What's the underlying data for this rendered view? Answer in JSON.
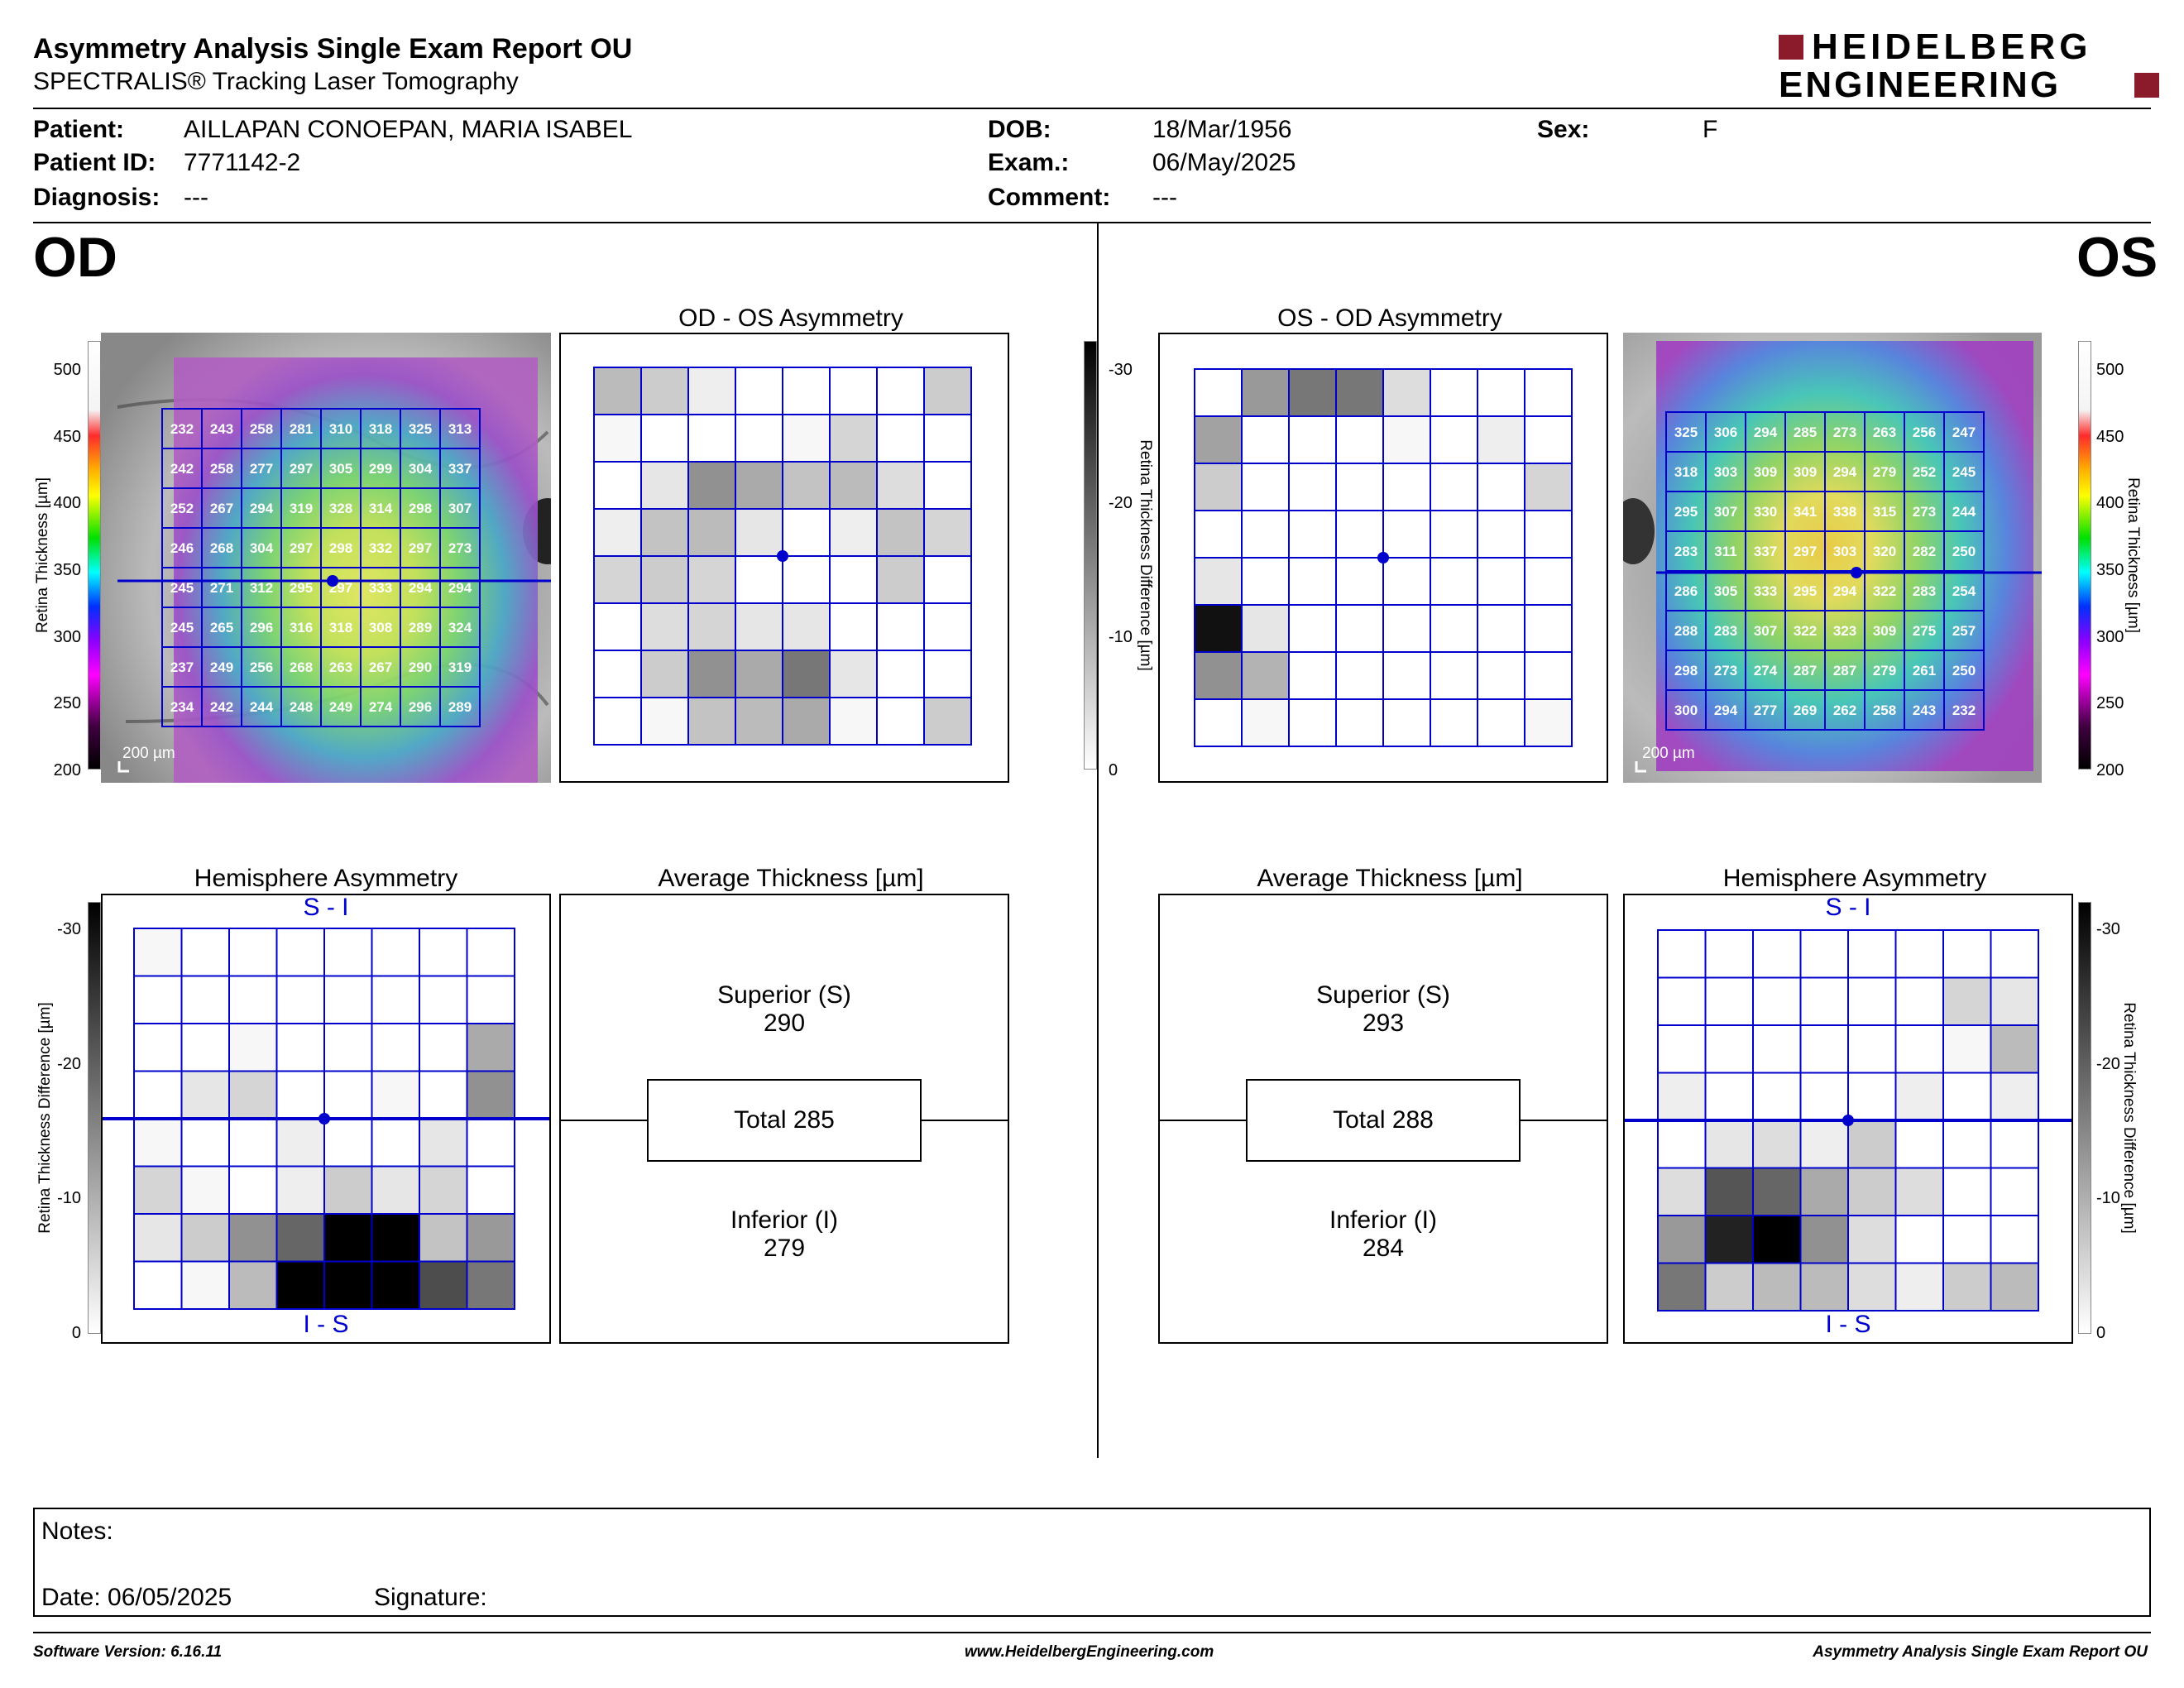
{
  "header": {
    "title": "Asymmetry Analysis Single Exam Report OU",
    "subtitle": "SPECTRALIS® Tracking Laser Tomography",
    "logo_line1": "HEIDELBERG",
    "logo_line2": "ENGINEERING",
    "brand_color": "#8b1a2b"
  },
  "patient": {
    "patient_label": "Patient:",
    "patient_value": "AILLAPAN CONOEPAN, MARIA ISABEL",
    "id_label": "Patient ID:",
    "id_value": "7771142-2",
    "diagnosis_label": "Diagnosis:",
    "diagnosis_value": "---",
    "dob_label": "DOB:",
    "dob_value": "18/Mar/1956",
    "exam_label": "Exam.:",
    "exam_value": "06/May/2025",
    "comment_label": "Comment:",
    "comment_value": "---",
    "sex_label": "Sex:",
    "sex_value": "F"
  },
  "od": {
    "eye_label": "OD",
    "asym_title": "OD - OS Asymmetry",
    "hemi_title": "Hemisphere Asymmetry",
    "avg_title": "Average Thickness [µm]",
    "superior_label": "Superior (S)",
    "superior_value": "290",
    "total_label": "Total 285",
    "inferior_label": "Inferior (I)",
    "inferior_value": "279",
    "scale_label": "200 µm",
    "hemi_top": "S - I",
    "hemi_bottom": "I - S",
    "thickness_grid": [
      [
        "232",
        "243",
        "258",
        "281",
        "310",
        "318",
        "325",
        "313"
      ],
      [
        "242",
        "258",
        "277",
        "297",
        "305",
        "299",
        "304",
        "337"
      ],
      [
        "252",
        "267",
        "294",
        "319",
        "328",
        "314",
        "298",
        "307"
      ],
      [
        "246",
        "268",
        "304",
        "297",
        "298",
        "332",
        "297",
        "273"
      ],
      [
        "245",
        "271",
        "312",
        "295",
        "297",
        "333",
        "294",
        "294"
      ],
      [
        "245",
        "265",
        "296",
        "316",
        "318",
        "308",
        "289",
        "324"
      ],
      [
        "237",
        "249",
        "256",
        "268",
        "263",
        "267",
        "290",
        "319"
      ],
      [
        "234",
        "242",
        "244",
        "248",
        "249",
        "274",
        "296",
        "289"
      ]
    ],
    "asym_gray": [
      [
        8,
        6,
        2,
        0,
        0,
        0,
        0,
        6
      ],
      [
        1,
        0,
        0,
        0,
        1,
        5,
        0,
        0
      ],
      [
        0,
        3,
        13,
        10,
        7,
        8,
        4,
        0
      ],
      [
        2,
        7,
        8,
        3,
        0,
        2,
        7,
        5
      ],
      [
        5,
        6,
        5,
        0,
        0,
        0,
        6,
        0
      ],
      [
        0,
        4,
        5,
        3,
        3,
        0,
        0,
        0
      ],
      [
        0,
        6,
        13,
        10,
        16,
        3,
        0,
        0
      ],
      [
        0,
        1,
        7,
        8,
        10,
        1,
        0,
        6
      ]
    ],
    "hemi_gray": [
      [
        1,
        0,
        0,
        0,
        0,
        0,
        0,
        0
      ],
      [
        0,
        0,
        0,
        0,
        0,
        0,
        0,
        0
      ],
      [
        0,
        0,
        1,
        0,
        0,
        0,
        0,
        10
      ],
      [
        0,
        3,
        5,
        0,
        0,
        1,
        0,
        13
      ],
      [
        1,
        0,
        0,
        2,
        0,
        0,
        3,
        0
      ],
      [
        5,
        1,
        0,
        2,
        6,
        3,
        5,
        0
      ],
      [
        3,
        6,
        13,
        18,
        30,
        30,
        7,
        12
      ],
      [
        0,
        1,
        8,
        30,
        30,
        30,
        21,
        16
      ]
    ]
  },
  "os": {
    "eye_label": "OS",
    "asym_title": "OS - OD Asymmetry",
    "hemi_title": "Hemisphere Asymmetry",
    "avg_title": "Average Thickness [µm]",
    "superior_label": "Superior (S)",
    "superior_value": "293",
    "total_label": "Total 288",
    "inferior_label": "Inferior (I)",
    "inferior_value": "284",
    "scale_label": "200 µm",
    "hemi_top": "S - I",
    "hemi_bottom": "I - S",
    "thickness_grid": [
      [
        "325",
        "306",
        "294",
        "285",
        "273",
        "263",
        "256",
        "247"
      ],
      [
        "318",
        "303",
        "309",
        "309",
        "294",
        "279",
        "252",
        "245"
      ],
      [
        "295",
        "307",
        "330",
        "341",
        "338",
        "315",
        "273",
        "244"
      ],
      [
        "283",
        "311",
        "337",
        "297",
        "303",
        "320",
        "282",
        "250"
      ],
      [
        "286",
        "305",
        "333",
        "295",
        "294",
        "322",
        "283",
        "254"
      ],
      [
        "288",
        "283",
        "307",
        "322",
        "323",
        "309",
        "275",
        "257"
      ],
      [
        "298",
        "273",
        "274",
        "287",
        "287",
        "279",
        "261",
        "250"
      ],
      [
        "300",
        "294",
        "277",
        "269",
        "262",
        "258",
        "243",
        "232"
      ]
    ],
    "asym_gray": [
      [
        0,
        12,
        16,
        16,
        4,
        0,
        0,
        0
      ],
      [
        11,
        0,
        0,
        0,
        1,
        0,
        2,
        0
      ],
      [
        6,
        0,
        0,
        0,
        0,
        0,
        0,
        5
      ],
      [
        0,
        0,
        0,
        0,
        0,
        0,
        0,
        0
      ],
      [
        3,
        0,
        0,
        0,
        0,
        0,
        0,
        0
      ],
      [
        28,
        3,
        0,
        0,
        0,
        0,
        0,
        0
      ],
      [
        13,
        9,
        0,
        0,
        0,
        0,
        0,
        0
      ],
      [
        0,
        1,
        0,
        0,
        0,
        0,
        0,
        1
      ]
    ],
    "hemi_gray": [
      [
        0,
        0,
        0,
        0,
        0,
        0,
        0,
        0
      ],
      [
        0,
        0,
        0,
        0,
        0,
        0,
        5,
        3
      ],
      [
        0,
        0,
        0,
        0,
        0,
        0,
        1,
        8
      ],
      [
        2,
        0,
        0,
        0,
        0,
        2,
        0,
        2
      ],
      [
        0,
        3,
        4,
        2,
        6,
        0,
        0,
        0
      ],
      [
        4,
        20,
        18,
        10,
        6,
        4,
        0,
        0
      ],
      [
        12,
        26,
        30,
        13,
        4,
        0,
        0,
        0
      ],
      [
        16,
        6,
        8,
        8,
        4,
        2,
        6,
        8
      ]
    ]
  },
  "colorbar": {
    "thickness_label": "Retina Thickness [µm]",
    "thickness_ticks": [
      "500",
      "450",
      "400",
      "350",
      "300",
      "250",
      "200"
    ],
    "diff_label": "Retina Thickness Difference [µm]",
    "diff_ticks": [
      "-30",
      "-20",
      "-10",
      "0"
    ]
  },
  "notes": {
    "notes_label": "Notes:",
    "date_label": "Date: 06/05/2025",
    "signature_label": "Signature:"
  },
  "footer": {
    "software": "Software Version: 6.16.11",
    "website": "www.HeidelbergEngineering.com",
    "report": "Asymmetry Analysis Single Exam Report OU"
  }
}
